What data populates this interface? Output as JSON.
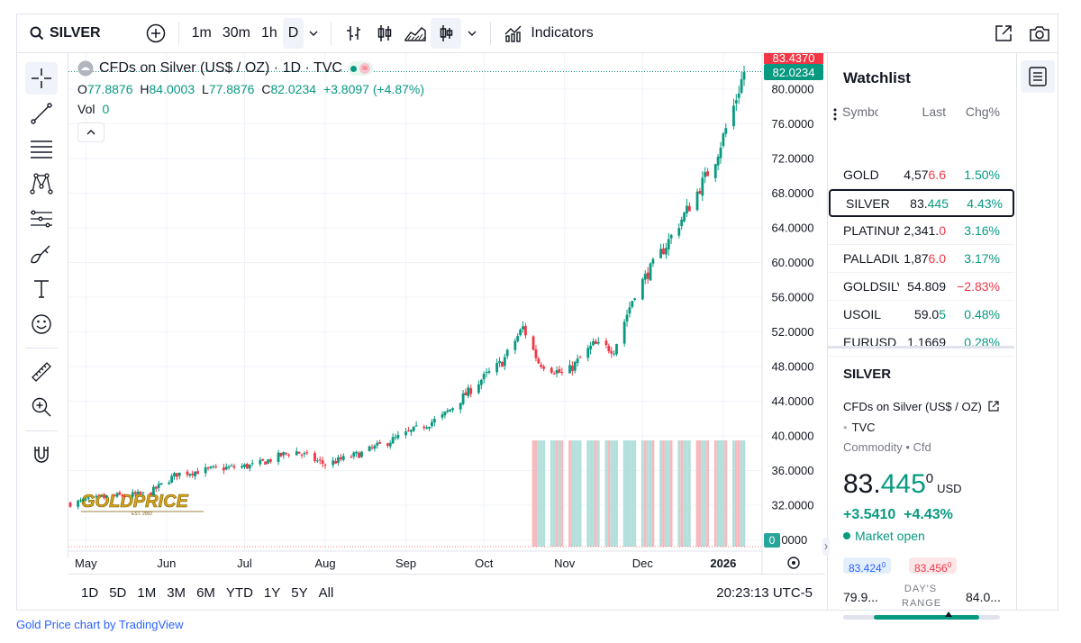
{
  "toolbar": {
    "symbol": "SILVER",
    "intervals": [
      "1m",
      "30m",
      "1h",
      "D"
    ],
    "active_interval": "D",
    "indicators_label": "Indicators"
  },
  "legend": {
    "title": "CFDs on Silver (US$ / OZ) · 1D · TVC",
    "open_label": "O",
    "open": "77.8876",
    "high_label": "H",
    "high": "84.0003",
    "low_label": "L",
    "low": "77.8876",
    "close_label": "C",
    "close": "82.0234",
    "change": "+3.8097 (+4.87%)",
    "vol_label": "Vol",
    "vol": "0"
  },
  "price_badges": {
    "top": "83.4370",
    "current": "82.0234",
    "vol": "0"
  },
  "y_axis": [
    "80.0000",
    "76.0000",
    "72.0000",
    "68.0000",
    "64.0000",
    "60.0000",
    "56.0000",
    "52.0000",
    "48.0000",
    "44.0000",
    "40.0000",
    "36.0000",
    "32.0000",
    ".0000"
  ],
  "x_axis": [
    "May",
    "Jun",
    "Jul",
    "Aug",
    "Sep",
    "Oct",
    "Nov",
    "Dec",
    "2026"
  ],
  "watermark": {
    "text": "GOLDPRICE",
    "sub": "EST. 2002"
  },
  "range_buttons": [
    "1D",
    "5D",
    "1M",
    "3M",
    "6M",
    "YTD",
    "1Y",
    "5Y",
    "All"
  ],
  "clock": "20:23:13 UTC-5",
  "watchlist": {
    "title": "Watchlist",
    "headers": {
      "symbol": "Symbol",
      "last": "Last",
      "chg": "Chg%"
    },
    "rows": [
      {
        "symbol": "GOLD",
        "last_main": "4,57",
        "last_tail": "6.6",
        "chg": "1.50%",
        "dir": "pos",
        "tail_dir": "neg"
      },
      {
        "symbol": "SILVER",
        "last_main": "83.",
        "last_tail": "445",
        "chg": "4.43%",
        "dir": "pos",
        "tail_dir": "pos"
      },
      {
        "symbol": "PLATINUM",
        "last_main": "2,341.",
        "last_tail": "0",
        "chg": "3.16%",
        "dir": "pos",
        "tail_dir": "neg"
      },
      {
        "symbol": "PALLADIUM",
        "last_main": "1,87",
        "last_tail": "6.0",
        "chg": "3.17%",
        "dir": "pos",
        "tail_dir": "neg"
      },
      {
        "symbol": "GOLDSILVER",
        "last_main": "54.809",
        "last_tail": "",
        "chg": "−2.83%",
        "dir": "neg",
        "tail_dir": "neg"
      },
      {
        "symbol": "USOIL",
        "last_main": "59.0",
        "last_tail": "5",
        "chg": "0.48%",
        "dir": "pos",
        "tail_dir": "pos"
      },
      {
        "symbol": "EURUSD",
        "last_main": "1.1669",
        "last_tail": "",
        "chg": "0.28%",
        "dir": "pos",
        "tail_dir": "pos"
      }
    ]
  },
  "details": {
    "symbol": "SILVER",
    "name": "CFDs on Silver (US$ / OZ)",
    "exchange": "TVC",
    "type": "Commodity • Cfd",
    "price_main": "83.",
    "price_green": "445",
    "price_sup": "0",
    "currency": "USD",
    "change": "+3.5410  +4.43%",
    "market_status": "Market open",
    "bid": "83.424",
    "bid_sup": "0",
    "ask": "83.456",
    "ask_sup": "0",
    "day_low": "79.9...",
    "day_range_label": "DAY'S RANGE",
    "day_high": "84.0...",
    "day_range_position": 0.67
  },
  "footer": "Gold Price chart by TradingView",
  "colors": {
    "up": "#089981",
    "down": "#f23645",
    "accent": "#2962ff"
  },
  "chart_data": {
    "type": "candlestick",
    "title": "CFDs on Silver (US$ / OZ) · 1D · TVC",
    "ylim": [
      30,
      82
    ],
    "x_ticks": [
      "May",
      "Jun",
      "Jul",
      "Aug",
      "Sep",
      "Oct",
      "Nov",
      "Dec",
      "2026"
    ],
    "close_path": [
      [
        "2025-04-25",
        32.2
      ],
      [
        "2025-05-10",
        33.0
      ],
      [
        "2025-05-25",
        33.3
      ],
      [
        "2025-06-05",
        35.6
      ],
      [
        "2025-06-20",
        36.2
      ],
      [
        "2025-07-05",
        36.6
      ],
      [
        "2025-07-20",
        38.3
      ],
      [
        "2025-08-01",
        36.7
      ],
      [
        "2025-08-15",
        38.0
      ],
      [
        "2025-09-01",
        40.2
      ],
      [
        "2025-09-15",
        42.2
      ],
      [
        "2025-09-30",
        46.5
      ],
      [
        "2025-10-08",
        48.5
      ],
      [
        "2025-10-16",
        52.5
      ],
      [
        "2025-10-22",
        48.5
      ],
      [
        "2025-11-01",
        47.0
      ],
      [
        "2025-11-12",
        50.5
      ],
      [
        "2025-11-20",
        50.0
      ],
      [
        "2025-11-28",
        56.5
      ],
      [
        "2025-12-10",
        62.0
      ],
      [
        "2025-12-20",
        67.0
      ],
      [
        "2025-12-29",
        72.0
      ],
      [
        "2026-01-05",
        78.0
      ],
      [
        "2026-01-09",
        82.0
      ]
    ]
  }
}
